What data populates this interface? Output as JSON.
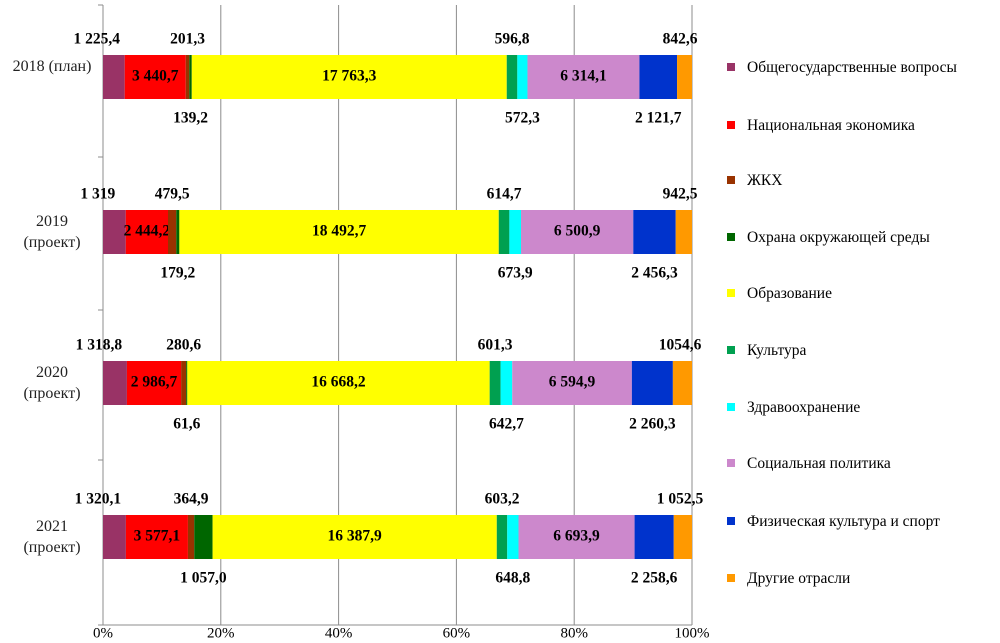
{
  "chart_data": {
    "type": "bar",
    "stacking": "percent",
    "orientation": "horizontal",
    "categories": [
      "2018 (план)",
      "2019 (проект)",
      "2020 (проект)",
      "2021 (проект)"
    ],
    "xlim": [
      0,
      100
    ],
    "xticks": [
      {
        "value": 0,
        "label": "0%"
      },
      {
        "value": 20,
        "label": "20%"
      },
      {
        "value": 40,
        "label": "40%"
      },
      {
        "value": 60,
        "label": "60%"
      },
      {
        "value": 80,
        "label": "80%"
      },
      {
        "value": 100,
        "label": "100%"
      }
    ],
    "grid": true,
    "legend": "right",
    "series": [
      {
        "name": "Общегосударственные вопросы",
        "color": "#993366",
        "values": [
          1225.4,
          1319,
          1318.8,
          1320.1
        ],
        "value_labels": [
          "1 225,4",
          "1 319",
          "1 318,8",
          "1 320,1"
        ]
      },
      {
        "name": "Национальная экономика",
        "color": "#ff0000",
        "values": [
          3440.7,
          2444.2,
          2986.7,
          3577.1
        ],
        "value_labels": [
          "3 440,7",
          "2 444,2",
          "2 986,7",
          "3 577,1"
        ]
      },
      {
        "name": "ЖКХ",
        "color": "#993300",
        "values": [
          201.3,
          479.5,
          280.6,
          364.9
        ],
        "value_labels": [
          "201,3",
          "479,5",
          "280,6",
          "364,9"
        ]
      },
      {
        "name": "Охрана окружающей среды",
        "color": "#006600",
        "values": [
          139.2,
          179.2,
          61.6,
          1057.0
        ],
        "value_labels": [
          "139,2",
          "179,2",
          "61,6",
          "1 057,0"
        ]
      },
      {
        "name": "Образование",
        "color": "#ffff00",
        "values": [
          17763.3,
          18492.7,
          16668.2,
          16387.9
        ],
        "value_labels": [
          "17 763,3",
          "18 492,7",
          "16 668,2",
          "16 387,9"
        ]
      },
      {
        "name": "Культура",
        "color": "#00a050",
        "values": [
          596.8,
          614.7,
          601.3,
          603.2
        ],
        "value_labels": [
          "596,8",
          "614,7",
          "601,3",
          "603,2"
        ]
      },
      {
        "name": "Здравоохранение",
        "color": "#00ffff",
        "values": [
          572.3,
          673.9,
          642.7,
          648.8
        ],
        "value_labels": [
          "572,3",
          "673,9",
          "642,7",
          "648,8"
        ]
      },
      {
        "name": "Социальная политика",
        "color": "#cc88cc",
        "values": [
          6314.1,
          6500.9,
          6594.9,
          6693.9
        ],
        "value_labels": [
          "6 314,1",
          "6 500,9",
          "6 594,9",
          "6 693,9"
        ]
      },
      {
        "name": "Физическая культура и спорт",
        "color": "#0033cc",
        "values": [
          2121.7,
          2456.3,
          2260.3,
          2258.6
        ],
        "value_labels": [
          "2 121,7",
          "2 456,3",
          "2 260,3",
          "2 258,6"
        ]
      },
      {
        "name": "Другие отрасли",
        "color": "#ff9900",
        "values": [
          842.6,
          942.5,
          1054.6,
          1052.5
        ],
        "value_labels": [
          "842,6",
          "942,5",
          "1054,6",
          "1 052,5"
        ]
      }
    ]
  }
}
